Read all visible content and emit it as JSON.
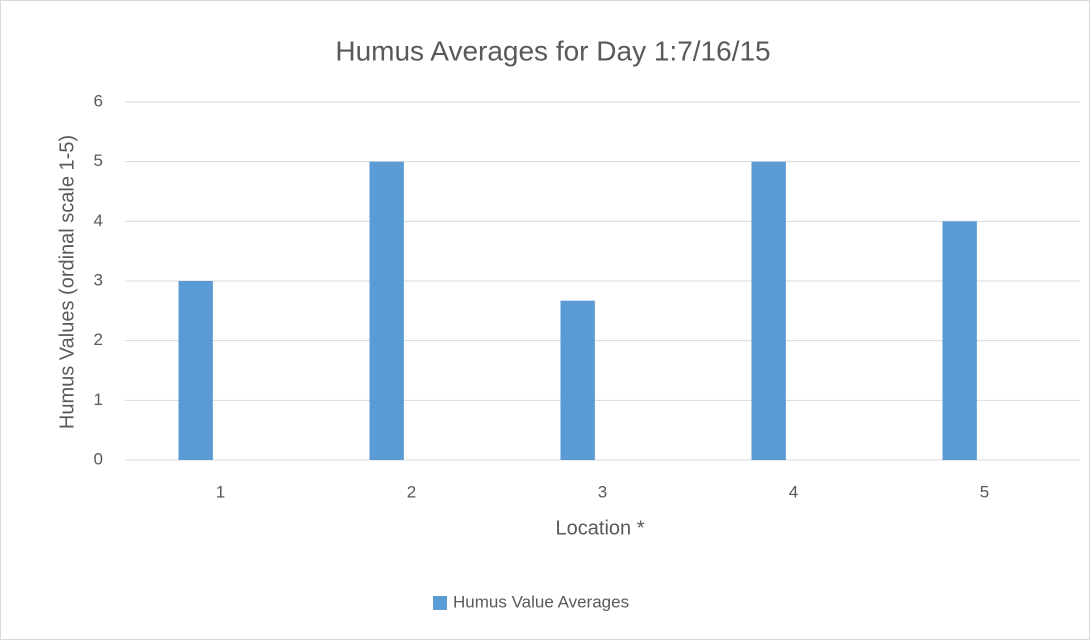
{
  "chart_data": {
    "type": "bar",
    "title": "Humus Averages for Day 1:7/16/15",
    "x_label": "Location *",
    "y_label": "Humus Values (ordinal scale 1-5)",
    "categories": [
      "1",
      "2",
      "3",
      "4",
      "5"
    ],
    "series": [
      {
        "name": "Humus Value Averages",
        "color": "#5b9bd5",
        "values": [
          3,
          5,
          2.67,
          5,
          4
        ]
      }
    ],
    "ylim": [
      0,
      6
    ],
    "yticks": [
      0,
      1,
      2,
      3,
      4,
      5,
      6
    ],
    "grid": true,
    "legend": "bottom"
  }
}
